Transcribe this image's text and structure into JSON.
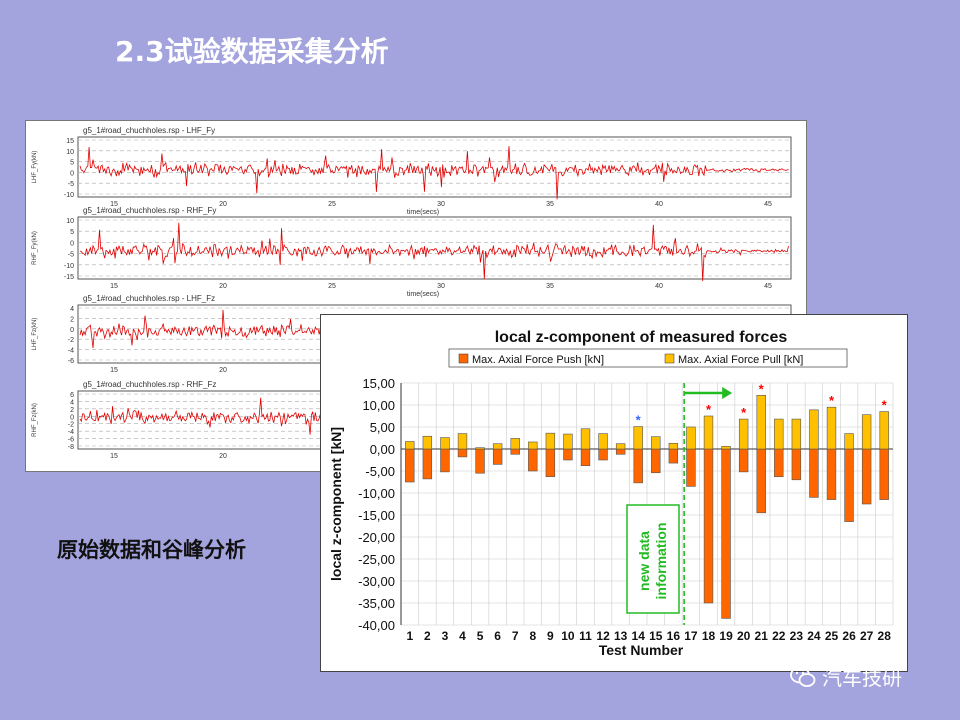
{
  "slide": {
    "title": "2.3试验数据采集分析",
    "caption": "原始数据和谷峰分析",
    "watermark": "汽车技研",
    "watermark_icon": "wechat-icon"
  },
  "waveform_panels": [
    {
      "header": "g5_1#road_chuchholes.rsp - LHF_Fy",
      "ylabel": "LHF_Fy(kN)",
      "yticks": [
        "15",
        "10",
        "5",
        "0",
        "-5",
        "-10"
      ],
      "xticks": [
        "15",
        "20",
        "25",
        "30",
        "35",
        "40",
        "45"
      ],
      "xlabel": "time(secs)"
    },
    {
      "header": "g5_1#road_chuchholes.rsp - RHF_Fy",
      "ylabel": "RHF_Fy(kN)",
      "yticks": [
        "10",
        "5",
        "0",
        "-5",
        "-10",
        "-15"
      ],
      "xticks": [
        "15",
        "20",
        "25",
        "30",
        "35",
        "40",
        "45"
      ],
      "xlabel": "time(secs)"
    },
    {
      "header": "g5_1#road_chuchholes.rsp - LHF_Fz",
      "ylabel": "LHF_Fz(kN)",
      "yticks": [
        "4",
        "2",
        "0",
        "-2",
        "-4",
        "-6"
      ],
      "xticks": [
        "15",
        "20"
      ],
      "xlabel": ""
    },
    {
      "header": "g5_1#road_chuchholes.rsp - RHF_Fz",
      "ylabel": "RHF_Fz(kN)",
      "yticks": [
        "6",
        "4",
        "2",
        "0",
        "-2",
        "-4",
        "-6",
        "-8"
      ],
      "xticks": [
        "15",
        "20"
      ],
      "xlabel": ""
    }
  ],
  "chart_data": {
    "type": "bar",
    "title": "local z-component of measured forces",
    "xlabel": "Test Number",
    "ylabel": "local z-component [kN]",
    "ylim": [
      -40,
      15
    ],
    "yticks": [
      "15,00",
      "10,00",
      "5,00",
      "0,00",
      "-5,00",
      "-10,00",
      "-15,00",
      "-20,00",
      "-25,00",
      "-30,00",
      "-35,00",
      "-40,00"
    ],
    "grid": true,
    "legend_position": "top",
    "categories": [
      "1",
      "2",
      "3",
      "4",
      "5",
      "6",
      "7",
      "8",
      "9",
      "10",
      "11",
      "12",
      "13",
      "14",
      "15",
      "16",
      "17",
      "18",
      "19",
      "20",
      "21",
      "22",
      "23",
      "24",
      "25",
      "26",
      "27",
      "28"
    ],
    "series": [
      {
        "name": "Max. Axial Force Push [kN]",
        "color": "#ff6600",
        "values": [
          -7.5,
          -6.8,
          -5.2,
          -1.8,
          -5.5,
          -3.5,
          -1.2,
          -5.0,
          -6.3,
          -2.5,
          -3.8,
          -2.5,
          -1.2,
          -7.7,
          -5.4,
          -3.2,
          -8.5,
          -35.0,
          -38.5,
          -5.2,
          -14.5,
          -6.3,
          -7.0,
          -11.0,
          -11.5,
          -16.5,
          -12.5,
          -11.5
        ]
      },
      {
        "name": "Max. Axial Force Pull [kN]",
        "color": "#ffc000",
        "values": [
          1.7,
          2.9,
          2.6,
          3.5,
          0.3,
          1.2,
          2.4,
          1.6,
          3.6,
          3.4,
          4.6,
          3.5,
          1.2,
          5.1,
          2.8,
          1.3,
          5.0,
          7.5,
          0.6,
          6.8,
          12.2,
          6.8,
          6.8,
          8.9,
          9.5,
          3.5,
          7.8,
          8.5
        ]
      }
    ],
    "markers": [
      {
        "test": "14",
        "symbol": "*",
        "color": "#3366ff"
      },
      {
        "test": "18",
        "symbol": "*",
        "color": "#ff0000"
      },
      {
        "test": "20",
        "symbol": "*",
        "color": "#ff0000"
      },
      {
        "test": "21",
        "symbol": "*",
        "color": "#ff0000"
      },
      {
        "test": "25",
        "symbol": "*",
        "color": "#ff0000"
      },
      {
        "test": "28",
        "symbol": "*",
        "color": "#ff0000"
      }
    ],
    "annotation": {
      "text_line1": "new data",
      "text_line2": "information",
      "from_test": "17",
      "color": "#22bb22"
    }
  }
}
